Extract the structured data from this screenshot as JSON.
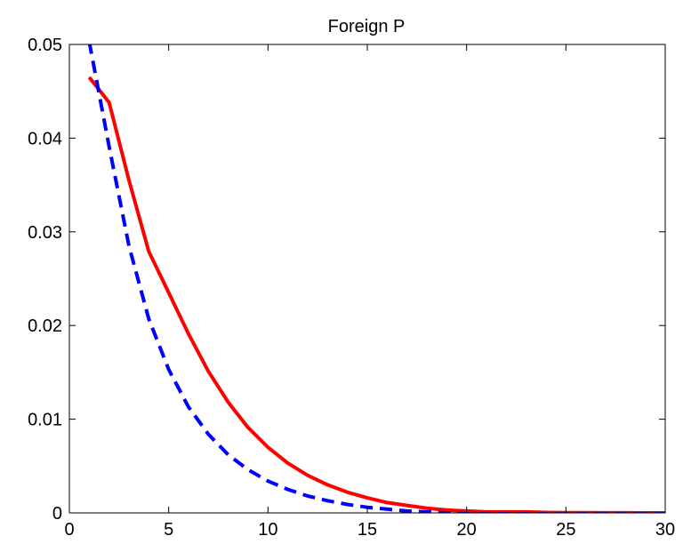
{
  "chart_data": {
    "type": "line",
    "title": "Foreign P",
    "xlabel": "",
    "ylabel": "",
    "xlim": [
      0,
      30
    ],
    "ylim": [
      0,
      0.05
    ],
    "x_ticks": [
      0,
      5,
      10,
      15,
      20,
      25,
      30
    ],
    "x_tick_labels": [
      "0",
      "5",
      "10",
      "15",
      "20",
      "25",
      "30"
    ],
    "y_ticks": [
      0,
      0.01,
      0.02,
      0.03,
      0.04,
      0.05
    ],
    "y_tick_labels": [
      "0",
      "0.01",
      "0.02",
      "0.03",
      "0.04",
      "0.05"
    ],
    "grid": false,
    "legend": "none",
    "x": [
      1,
      2,
      3,
      4,
      5,
      6,
      7,
      8,
      9,
      10,
      11,
      12,
      13,
      14,
      15,
      16,
      17,
      18,
      19,
      20,
      21,
      22,
      23,
      24,
      25,
      26,
      27,
      28,
      29,
      30
    ],
    "series": [
      {
        "style": "solid",
        "color": "#ff0000",
        "values": [
          0.0465,
          0.0438,
          0.0355,
          0.0279,
          0.0235,
          0.0191,
          0.0151,
          0.0118,
          0.0091,
          0.007,
          0.0053,
          0.004,
          0.003,
          0.0022,
          0.0016,
          0.0011,
          0.0008,
          0.0005,
          0.0003,
          0.0002,
          0.0001,
          0.0001,
          0.0001,
          5e-05,
          3e-05,
          2e-05,
          1e-05,
          1e-05,
          0.0,
          0.0
        ]
      },
      {
        "style": "dashed",
        "color": "#0000ff",
        "values": [
          0.0503,
          0.0391,
          0.0285,
          0.0207,
          0.0153,
          0.0113,
          0.0084,
          0.0062,
          0.0046,
          0.0034,
          0.0025,
          0.0018,
          0.0013,
          0.0009,
          0.0006,
          0.0004,
          0.0002,
          0.0001,
          0.0,
          -0.0001,
          -0.0001,
          -0.0001,
          -0.0001,
          -0.0001,
          -0.0001,
          -0.0001,
          -0.0001,
          -0.0001,
          -0.0001,
          -0.0001
        ]
      }
    ]
  }
}
